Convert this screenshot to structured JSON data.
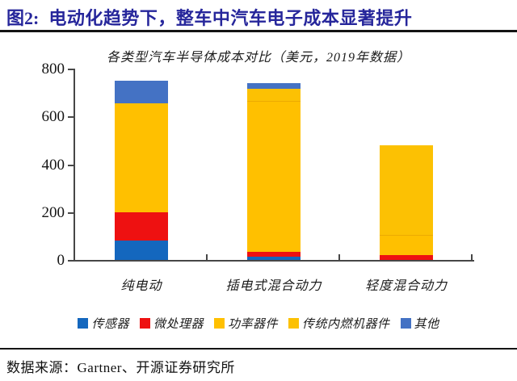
{
  "header": {
    "figure_label": "图2:",
    "title": "电动化趋势下，整车中汽车电子成本显著提升"
  },
  "chart_data": {
    "type": "bar",
    "stacked": true,
    "title": "各类型汽车半导体成本对比（美元，2019年数据）",
    "categories": [
      "纯电动",
      "插电式混合动力",
      "轻度混合动力"
    ],
    "series": [
      {
        "name": "传感器",
        "color": "#1467BE",
        "values": [
          80,
          15,
          0
        ]
      },
      {
        "name": "微处理器",
        "color": "#EE1111",
        "values": [
          120,
          20,
          20
        ]
      },
      {
        "name": "功率器件",
        "color": "#FFC000",
        "values": [
          455,
          625,
          80
        ]
      },
      {
        "name": "传统内燃机器件",
        "color": "#FCC103",
        "values": [
          0,
          55,
          375
        ]
      },
      {
        "name": "其他",
        "color": "#4472C4",
        "values": [
          95,
          25,
          0
        ]
      }
    ],
    "totals": [
      750,
      740,
      475
    ],
    "xlabel": "",
    "ylabel": "",
    "ylim": [
      0,
      800
    ],
    "yticks": [
      0,
      200,
      400,
      600,
      800
    ],
    "grid": false,
    "legend_position": "bottom"
  },
  "footer": {
    "source": "数据来源：Gartner、开源证券研究所"
  }
}
